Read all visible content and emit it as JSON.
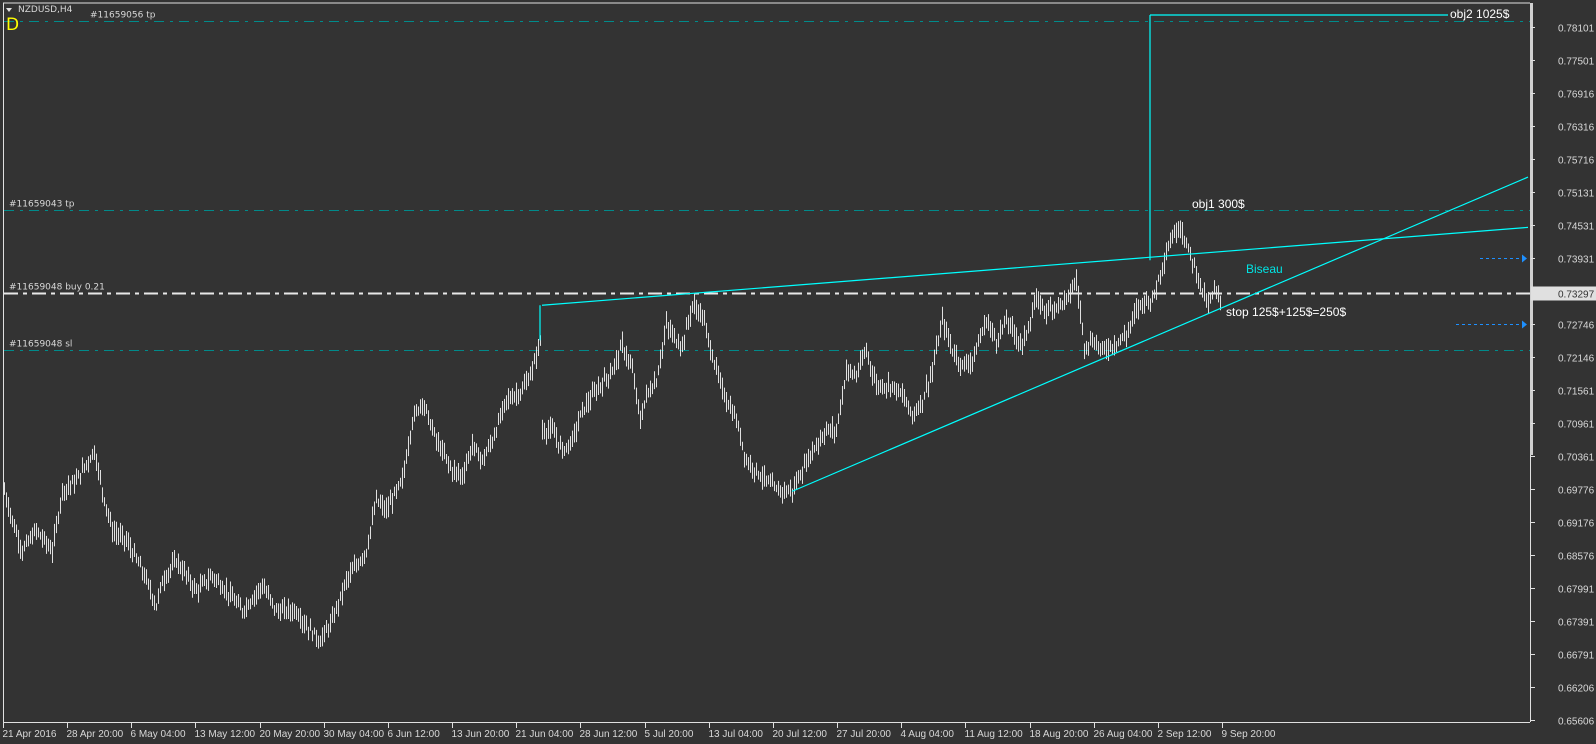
{
  "header": {
    "symbol_label": "NZDUSD,H4",
    "indicator_letter": "D"
  },
  "colors": {
    "background": "#333333",
    "bars": "#e0e0e0",
    "trendline": "#00ffff",
    "order_line": "#008b8b",
    "arrow": "#1e90ff",
    "entry_line": "#e8e8e8",
    "letter": "#ffff00"
  },
  "orders": [
    {
      "label": "#11659056 tp",
      "price": 0.78209,
      "style": "tp"
    },
    {
      "label": "#11659043 tp",
      "price": 0.74798,
      "style": "tp"
    },
    {
      "label": "#11659048 buy 0.21",
      "price": 0.73297,
      "style": "entry"
    },
    {
      "label": "#11659048 sl",
      "price": 0.72283,
      "style": "sl"
    }
  ],
  "annotations": {
    "obj2": "obj2 1025$",
    "obj1": "obj1 300$",
    "biseau": "Biseau",
    "stop": "stop 125$+125$=250$"
  },
  "chart_data": {
    "type": "ohlc",
    "timeframe": "H4",
    "ylim": [
      0.65606,
      0.78101
    ],
    "current_price": "0.73297",
    "y_ticks": [
      "0.78101",
      "0.77501",
      "0.76916",
      "0.76316",
      "0.75716",
      "0.75131",
      "0.74531",
      "0.73931",
      "0.73297",
      "0.72746",
      "0.72146",
      "0.71561",
      "0.70961",
      "0.70361",
      "0.69776",
      "0.69176",
      "0.68576",
      "0.67991",
      "0.67391",
      "0.66791",
      "0.66206",
      "0.65606"
    ],
    "x_ticks": [
      "21 Apr 2016",
      "28 Apr 20:00",
      "6 May 04:00",
      "13 May 12:00",
      "20 May 20:00",
      "30 May 04:00",
      "6 Jun 12:00",
      "13 Jun 20:00",
      "21 Jun 04:00",
      "28 Jun 12:00",
      "5 Jul 20:00",
      "13 Jul 04:00",
      "20 Jul 12:00",
      "27 Jul 20:00",
      "4 Aug 04:00",
      "11 Aug 12:00",
      "18 Aug 20:00",
      "26 Aug 04:00",
      "2 Sep 12:00",
      "9 Sep 20:00"
    ],
    "bars_per_x_tick": 32,
    "price_path_bar_price": [
      [
        0,
        0.69745
      ],
      [
        4,
        0.69203
      ],
      [
        9,
        0.68661
      ],
      [
        16,
        0.69022
      ],
      [
        24,
        0.68661
      ],
      [
        29,
        0.69745
      ],
      [
        36,
        0.69925
      ],
      [
        45,
        0.70467
      ],
      [
        49,
        0.69745
      ],
      [
        54,
        0.69022
      ],
      [
        61,
        0.68842
      ],
      [
        69,
        0.683
      ],
      [
        76,
        0.67668
      ],
      [
        79,
        0.68119
      ],
      [
        86,
        0.68481
      ],
      [
        96,
        0.67939
      ],
      [
        104,
        0.6821
      ],
      [
        111,
        0.67939
      ],
      [
        119,
        0.67578
      ],
      [
        129,
        0.68029
      ],
      [
        136,
        0.67578
      ],
      [
        146,
        0.67578
      ],
      [
        151,
        0.67307
      ],
      [
        158,
        0.67036
      ],
      [
        164,
        0.67397
      ],
      [
        171,
        0.68119
      ],
      [
        181,
        0.68661
      ],
      [
        186,
        0.69564
      ],
      [
        191,
        0.69383
      ],
      [
        199,
        0.69925
      ],
      [
        204,
        0.71008
      ],
      [
        209,
        0.7137
      ],
      [
        216,
        0.70647
      ],
      [
        224,
        0.70105
      ],
      [
        229,
        0.70015
      ],
      [
        234,
        0.70557
      ],
      [
        239,
        0.70286
      ],
      [
        244,
        0.70647
      ],
      [
        251,
        0.7137
      ],
      [
        259,
        0.71549
      ],
      [
        264,
        0.7191
      ],
      [
        268,
        0.72452
      ],
      [
        269,
        0.70828
      ],
      [
        274,
        0.70828
      ],
      [
        279,
        0.70467
      ],
      [
        284,
        0.70647
      ],
      [
        289,
        0.71189
      ],
      [
        296,
        0.71549
      ],
      [
        304,
        0.7191
      ],
      [
        309,
        0.72362
      ],
      [
        314,
        0.7191
      ],
      [
        318,
        0.71008
      ],
      [
        321,
        0.71459
      ],
      [
        326,
        0.7173
      ],
      [
        331,
        0.72723
      ],
      [
        336,
        0.72452
      ],
      [
        339,
        0.72362
      ],
      [
        344,
        0.73084
      ],
      [
        349,
        0.72903
      ],
      [
        354,
        0.72181
      ],
      [
        359,
        0.71549
      ],
      [
        366,
        0.71008
      ],
      [
        371,
        0.70286
      ],
      [
        376,
        0.70105
      ],
      [
        381,
        0.69925
      ],
      [
        386,
        0.69745
      ],
      [
        394,
        0.69745
      ],
      [
        399,
        0.70105
      ],
      [
        404,
        0.70467
      ],
      [
        411,
        0.70828
      ],
      [
        416,
        0.70828
      ],
      [
        421,
        0.7191
      ],
      [
        426,
        0.7182
      ],
      [
        431,
        0.72272
      ],
      [
        436,
        0.7164
      ],
      [
        444,
        0.7164
      ],
      [
        449,
        0.71459
      ],
      [
        454,
        0.71099
      ],
      [
        459,
        0.7137
      ],
      [
        464,
        0.7191
      ],
      [
        469,
        0.72813
      ],
      [
        474,
        0.72272
      ],
      [
        479,
        0.72001
      ],
      [
        484,
        0.72091
      ],
      [
        491,
        0.72813
      ],
      [
        496,
        0.72452
      ],
      [
        501,
        0.72813
      ],
      [
        509,
        0.72362
      ],
      [
        516,
        0.73174
      ],
      [
        521,
        0.72994
      ],
      [
        526,
        0.73084
      ],
      [
        531,
        0.73174
      ],
      [
        536,
        0.73535
      ],
      [
        540,
        0.72362
      ],
      [
        544,
        0.72452
      ],
      [
        549,
        0.72272
      ],
      [
        554,
        0.72362
      ],
      [
        561,
        0.72542
      ],
      [
        566,
        0.72994
      ],
      [
        570,
        0.73174
      ],
      [
        574,
        0.73174
      ],
      [
        579,
        0.73806
      ],
      [
        583,
        0.74257
      ],
      [
        588,
        0.74537
      ],
      [
        591,
        0.74167
      ],
      [
        595,
        0.73806
      ],
      [
        599,
        0.73355
      ],
      [
        602,
        0.73084
      ],
      [
        605,
        0.73355
      ],
      [
        608,
        0.73174
      ]
    ],
    "trendlines": [
      {
        "name": "wedge-upper",
        "from": [
          269,
          0.73084
        ],
        "to": [
          762,
          0.74488
        ]
      },
      {
        "name": "wedge-lower",
        "from": [
          394,
          0.69728
        ],
        "to": [
          762,
          0.75395
        ]
      },
      {
        "name": "obj2-vertical",
        "from": [
          573,
          0.73896
        ],
        "to": [
          573,
          0.78318
        ]
      },
      {
        "name": "obj2-horizontal",
        "from": [
          573,
          0.78318
        ],
        "to": [
          722,
          0.78318
        ]
      },
      {
        "name": "wedge-start-vertical",
        "from": [
          268,
          0.72452
        ],
        "to": [
          268,
          0.73084
        ]
      }
    ],
    "arrows": [
      {
        "price": 0.73931,
        "from_bar": 738,
        "to_bar": 759
      },
      {
        "price": 0.72746,
        "from_bar": 726,
        "to_bar": 759
      }
    ]
  }
}
